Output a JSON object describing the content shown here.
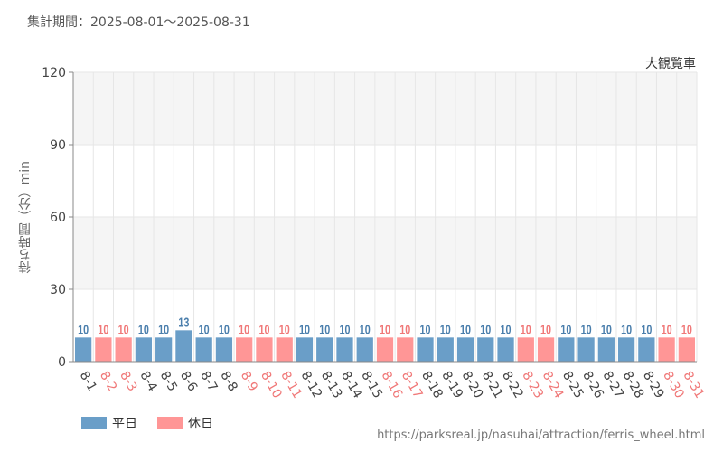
{
  "period_text": "集計期間：2025-08-01～2025-08-31",
  "url": "https://parksreal.jp/nasuhai/attraction/ferris_wheel.html",
  "chart_data": {
    "type": "bar",
    "title": "大観覧車",
    "ylabel": "待ち時間（分）min",
    "xlabel": "",
    "ylim": [
      0,
      120
    ],
    "yticks": [
      0,
      30,
      60,
      90,
      120
    ],
    "grid": true,
    "legend_position": "bottom-left",
    "legend": [
      {
        "name": "平日",
        "color": "#6a9ec8"
      },
      {
        "name": "休日",
        "color": "#ff9696"
      }
    ],
    "categories": [
      "8-1",
      "8-2",
      "8-3",
      "8-4",
      "8-5",
      "8-6",
      "8-7",
      "8-8",
      "8-9",
      "8-10",
      "8-11",
      "8-12",
      "8-13",
      "8-14",
      "8-15",
      "8-16",
      "8-17",
      "8-18",
      "8-19",
      "8-20",
      "8-21",
      "8-22",
      "8-23",
      "8-24",
      "8-25",
      "8-26",
      "8-27",
      "8-28",
      "8-29",
      "8-30",
      "8-31"
    ],
    "values": [
      10,
      10,
      10,
      10,
      10,
      13,
      10,
      10,
      10,
      10,
      10,
      10,
      10,
      10,
      10,
      10,
      10,
      10,
      10,
      10,
      10,
      10,
      10,
      10,
      10,
      10,
      10,
      10,
      10,
      10,
      10
    ],
    "day_type": [
      "平日",
      "休日",
      "休日",
      "平日",
      "平日",
      "平日",
      "平日",
      "平日",
      "休日",
      "休日",
      "休日",
      "平日",
      "平日",
      "平日",
      "平日",
      "休日",
      "休日",
      "平日",
      "平日",
      "平日",
      "平日",
      "平日",
      "休日",
      "休日",
      "平日",
      "平日",
      "平日",
      "平日",
      "平日",
      "休日",
      "休日"
    ],
    "colors": {
      "weekday_bar": "#6a9ec8",
      "weekday_label": "#4a7eac",
      "holiday_bar": "#ff9696",
      "holiday_label": "#f07878",
      "band": "#f5f5f5",
      "grid": "#e6e6e6",
      "axis": "#888888"
    }
  }
}
